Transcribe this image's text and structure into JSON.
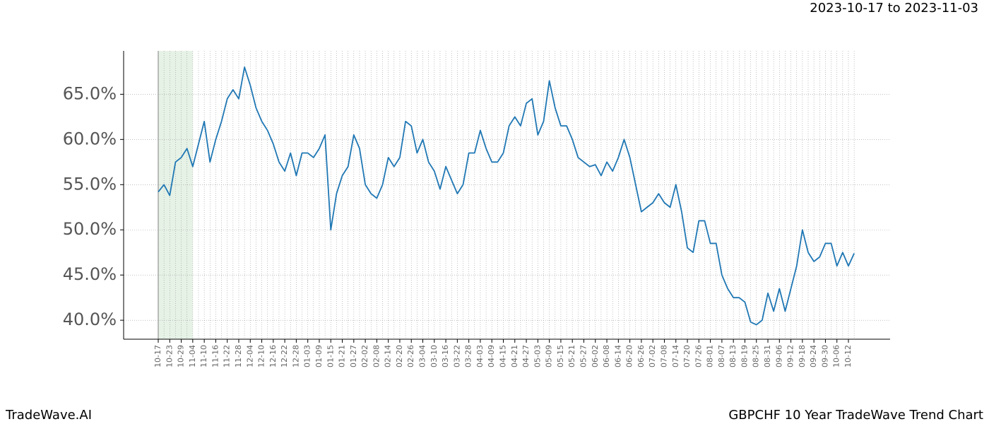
{
  "chart_data": {
    "type": "line",
    "title": "GBPCHF 10 Year TradeWave Trend Chart",
    "date_range": "2023-10-17 to 2023-11-03",
    "brand": "TradeWave.AI",
    "categories": [
      "10-17",
      null,
      "10-23",
      null,
      "10-29",
      null,
      "11-04",
      null,
      "11-10",
      null,
      "11-16",
      null,
      "11-22",
      null,
      "11-28",
      null,
      "12-04",
      null,
      "12-10",
      null,
      "12-16",
      null,
      "12-22",
      null,
      "12-28",
      null,
      "01-03",
      null,
      "01-09",
      null,
      "01-15",
      null,
      "01-21",
      null,
      "01-27",
      null,
      "02-02",
      null,
      "02-08",
      null,
      "02-14",
      null,
      "02-20",
      null,
      "02-26",
      null,
      "03-04",
      null,
      "03-10",
      null,
      "03-16",
      null,
      "03-22",
      null,
      "03-28",
      null,
      "04-03",
      null,
      "04-09",
      null,
      "04-15",
      null,
      "04-21",
      null,
      "04-27",
      null,
      "05-03",
      null,
      "05-09",
      null,
      "05-15",
      null,
      "05-21",
      null,
      "05-27",
      null,
      "06-02",
      null,
      "06-08",
      null,
      "06-14",
      null,
      "06-20",
      null,
      "06-26",
      null,
      "07-02",
      null,
      "07-08",
      null,
      "07-14",
      null,
      "07-20",
      null,
      "07-26",
      null,
      "08-01",
      null,
      "08-07",
      null,
      "08-13",
      null,
      "08-19",
      null,
      "08-25",
      null,
      "08-31",
      null,
      "09-06",
      null,
      "09-12",
      null,
      "09-18",
      null,
      "09-24",
      null,
      "09-30",
      null,
      "10-06",
      null,
      "10-12",
      null
    ],
    "values": [
      54.2,
      55.0,
      53.8,
      57.5,
      58,
      59,
      57,
      59.5,
      62,
      57.5,
      60,
      62,
      64.5,
      65.5,
      64.5,
      68,
      66,
      63.5,
      62,
      61,
      59.5,
      57.5,
      56.5,
      58.5,
      56,
      58.5,
      58.5,
      58,
      59,
      60.5,
      50,
      54,
      56,
      57,
      60.5,
      59,
      55,
      54,
      53.5,
      55,
      58,
      57,
      58,
      62,
      61.5,
      58.5,
      60,
      57.5,
      56.5,
      54.5,
      57,
      55.5,
      54,
      55,
      58.5,
      58.5,
      61,
      59,
      57.5,
      57.5,
      58.5,
      61.5,
      62.5,
      61.5,
      64,
      64.5,
      60.5,
      62,
      66.5,
      63.5,
      61.5,
      61.5,
      60,
      58,
      57.5,
      57,
      57.2,
      56,
      57.5,
      56.5,
      58,
      60,
      58,
      55,
      52,
      52.5,
      53,
      54,
      53,
      52.5,
      55,
      52,
      48,
      47.5,
      51,
      51,
      48.5,
      48.5,
      45,
      43.5,
      42.5,
      42.5,
      42,
      39.8,
      39.5,
      40,
      43,
      41,
      43.5,
      41,
      43.5,
      46,
      50,
      47.5,
      46.5,
      47,
      48.5,
      48.5,
      46,
      47.5,
      46,
      47.4
    ],
    "color": "#1f77b4",
    "highlight": {
      "from": 0,
      "to": 6,
      "color": "#d5ead5"
    },
    "ylim": [
      37.9,
      69.8
    ],
    "yticks": [
      {
        "value": 40,
        "label": "40.0%"
      },
      {
        "value": 45,
        "label": "45.0%"
      },
      {
        "value": 50,
        "label": "50.0%"
      },
      {
        "value": 55,
        "label": "55.0%"
      },
      {
        "value": 60,
        "label": "60.0%"
      },
      {
        "value": 65,
        "label": "65.0%"
      }
    ],
    "grid": true
  }
}
